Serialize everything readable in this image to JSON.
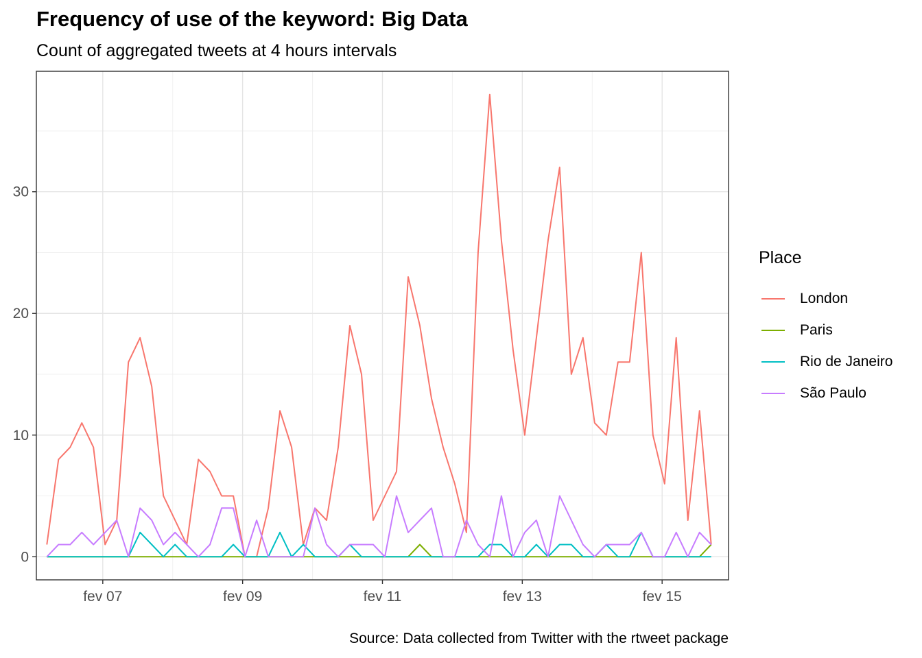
{
  "chart_data": {
    "type": "line",
    "title": "Frequency of use of the keyword: Big Data",
    "subtitle": "Count of aggregated tweets at 4 hours intervals",
    "caption": "Source: Data collected from Twitter with the rtweet package",
    "xlabel": "",
    "ylabel": "",
    "legend_title": "Place",
    "legend_position": "right",
    "grid": true,
    "x_unit": "days",
    "xlim": [
      6.05,
      15.95
    ],
    "ylim": [
      -1.9,
      39.9
    ],
    "x_ticks": [
      {
        "value": 7,
        "label": "fev 07"
      },
      {
        "value": 9,
        "label": "fev 09"
      },
      {
        "value": 11,
        "label": "fev 11"
      },
      {
        "value": 13,
        "label": "fev 13"
      },
      {
        "value": 15,
        "label": "fev 15"
      }
    ],
    "y_ticks": [
      {
        "value": 0,
        "label": "0"
      },
      {
        "value": 10,
        "label": "10"
      },
      {
        "value": 20,
        "label": "20"
      },
      {
        "value": 30,
        "label": "30"
      }
    ],
    "x_start": 6.2,
    "x_step": 0.1667,
    "series": [
      {
        "name": "London",
        "color": "#F8766D",
        "values": [
          1,
          8,
          9,
          11,
          9,
          1,
          3,
          16,
          18,
          14,
          5,
          3,
          1,
          8,
          7,
          5,
          5,
          0,
          0,
          4,
          12,
          9,
          1,
          4,
          3,
          9,
          19,
          15,
          3,
          5,
          7,
          23,
          19,
          13,
          9,
          6,
          2,
          25,
          38,
          26,
          17,
          10,
          18,
          26,
          32,
          15,
          18,
          11,
          10,
          16,
          16,
          25,
          10,
          6,
          18,
          3,
          12,
          1
        ]
      },
      {
        "name": "Paris",
        "color": "#7CAE00",
        "values": [
          0,
          0,
          0,
          0,
          0,
          0,
          0,
          0,
          0,
          0,
          0,
          0,
          0,
          0,
          0,
          0,
          0,
          0,
          0,
          0,
          0,
          0,
          0,
          0,
          0,
          0,
          0,
          0,
          0,
          0,
          0,
          0,
          1,
          0,
          0,
          0,
          0,
          0,
          0,
          0,
          0,
          0,
          0,
          0,
          0,
          0,
          0,
          0,
          0,
          0,
          0,
          0,
          0,
          0,
          0,
          0,
          0,
          1
        ]
      },
      {
        "name": "Rio de Janeiro",
        "color": "#00BFC4",
        "values": [
          0,
          0,
          0,
          0,
          0,
          0,
          0,
          0,
          2,
          1,
          0,
          1,
          0,
          0,
          0,
          0,
          1,
          0,
          0,
          0,
          2,
          0,
          1,
          0,
          0,
          0,
          1,
          0,
          0,
          0,
          0,
          0,
          0,
          0,
          0,
          0,
          0,
          0,
          1,
          1,
          0,
          0,
          1,
          0,
          1,
          1,
          0,
          0,
          1,
          0,
          0,
          2,
          0,
          0,
          0,
          0,
          0,
          0
        ]
      },
      {
        "name": "São Paulo",
        "color": "#C77CFF",
        "values": [
          0,
          1,
          1,
          2,
          1,
          2,
          3,
          0,
          4,
          3,
          1,
          2,
          1,
          0,
          1,
          4,
          4,
          0,
          3,
          0,
          0,
          0,
          0,
          4,
          1,
          0,
          1,
          1,
          1,
          0,
          5,
          2,
          3,
          4,
          0,
          0,
          3,
          1,
          0,
          5,
          0,
          2,
          3,
          0,
          5,
          3,
          1,
          0,
          1,
          1,
          1,
          2,
          0,
          0,
          2,
          0,
          2,
          1
        ]
      }
    ]
  }
}
